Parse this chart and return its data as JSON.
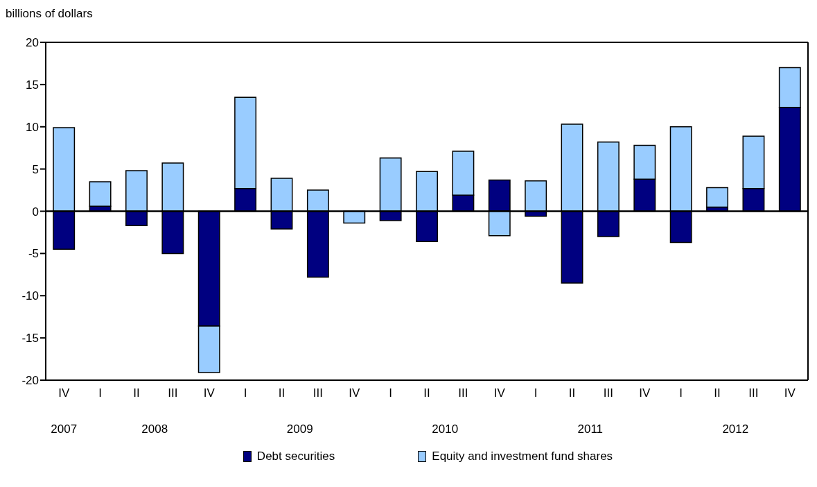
{
  "chart_data": {
    "type": "bar",
    "stacked": true,
    "ylabel": "billions of dollars",
    "categories": [
      "IV",
      "I",
      "II",
      "III",
      "IV",
      "I",
      "II",
      "III",
      "IV",
      "I",
      "II",
      "III",
      "IV",
      "I",
      "II",
      "III",
      "IV",
      "I",
      "II",
      "III",
      "IV"
    ],
    "series": [
      {
        "name": "Debt securities",
        "color": "#000080",
        "values": [
          -4.5,
          0.6,
          -1.7,
          -5.0,
          -13.6,
          2.7,
          -2.1,
          -7.8,
          0,
          -1.1,
          -3.6,
          1.9,
          3.7,
          -0.6,
          -8.5,
          -3.0,
          3.8,
          -3.7,
          0.5,
          2.7,
          12.3
        ]
      },
      {
        "name": "Equity and investment fund shares",
        "color": "#99ccff",
        "values": [
          9.9,
          2.9,
          4.8,
          5.7,
          -5.5,
          10.8,
          3.9,
          2.5,
          -1.4,
          6.3,
          4.7,
          5.2,
          -2.9,
          3.6,
          10.3,
          8.2,
          4.0,
          10.0,
          2.3,
          6.2,
          4.7
        ]
      }
    ],
    "ylim": [
      -20,
      20
    ],
    "yticks": [
      -20,
      -15,
      -10,
      -5,
      0,
      5,
      10,
      15,
      20
    ],
    "ref_lines": [
      {
        "axis": "y",
        "value": 0,
        "color": "#000000"
      }
    ],
    "annotations": [
      "2007",
      "2008",
      "2009",
      "2010",
      "2011",
      "2012"
    ],
    "legend": "bottom"
  }
}
